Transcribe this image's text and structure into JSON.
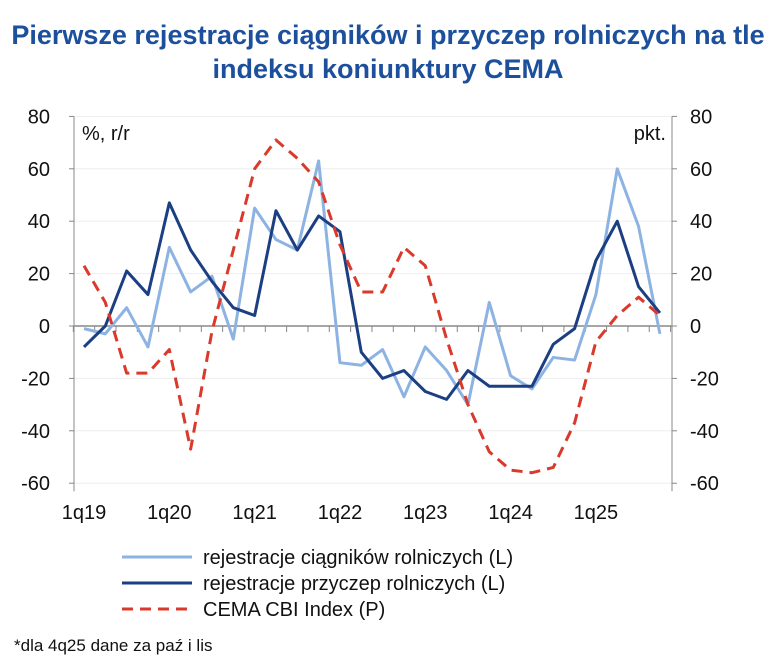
{
  "title": "Pierwsze rejestracje ciągników i przyczep rolniczych na tle indeksu koniunktury CEMA",
  "footnote": "*dla 4q25 dane za paź i lis",
  "chart_data": {
    "type": "line",
    "title": "Pierwsze rejestracje ciągników i przyczep rolniczych na tle indeksu koniunktury CEMA",
    "ylabel_left": "%, r/r",
    "ylabel_right": "pkt.",
    "ylim": [
      -60,
      80
    ],
    "yticks": [
      80,
      60,
      40,
      20,
      0,
      -20,
      -40,
      -60
    ],
    "x": [
      "1q19",
      "2q19",
      "3q19",
      "4q19",
      "1q20",
      "2q20",
      "3q20",
      "4q20",
      "1q21",
      "2q21",
      "3q21",
      "4q21",
      "1q22",
      "2q22",
      "3q22",
      "4q22",
      "1q23",
      "2q23",
      "3q23",
      "4q23",
      "1q24",
      "2q24",
      "3q24",
      "4q24",
      "1q25",
      "2q25",
      "3q25",
      "4q25"
    ],
    "xtick_labels": [
      "1q19",
      "1q20",
      "1q21",
      "1q22",
      "1q23",
      "1q24",
      "1q25"
    ],
    "legend_position": "bottom",
    "series": [
      {
        "name": "rejestracje ciągników rolniczych (L)",
        "color": "#8db3e2",
        "dash": false,
        "values": [
          -1,
          -3,
          7,
          -8,
          30,
          13,
          19,
          -5,
          45,
          33,
          29,
          63,
          -14,
          -15,
          -9,
          -27,
          -8,
          -17,
          -30,
          9,
          -19,
          -24,
          -12,
          -13,
          12,
          60,
          38,
          -3
        ]
      },
      {
        "name": "rejestracje przyczep rolniczych (L)",
        "color": "#1b3f82",
        "dash": false,
        "values": [
          -8,
          0,
          21,
          12,
          47,
          29,
          17,
          7,
          4,
          44,
          29,
          42,
          36,
          -10,
          -20,
          -17,
          -25,
          -28,
          -17,
          -23,
          -23,
          -23,
          -7,
          -1,
          25,
          40,
          15,
          5
        ]
      },
      {
        "name": "CEMA CBI Index (P)",
        "color": "#d93a2b",
        "dash": true,
        "values": [
          23,
          9,
          -18,
          -18,
          -9,
          -47,
          -2,
          29,
          60,
          71,
          64,
          55,
          31,
          13,
          13,
          30,
          23,
          -5,
          -30,
          -48,
          -55,
          -56,
          -54,
          -37,
          -6,
          4,
          11,
          4
        ]
      }
    ]
  }
}
